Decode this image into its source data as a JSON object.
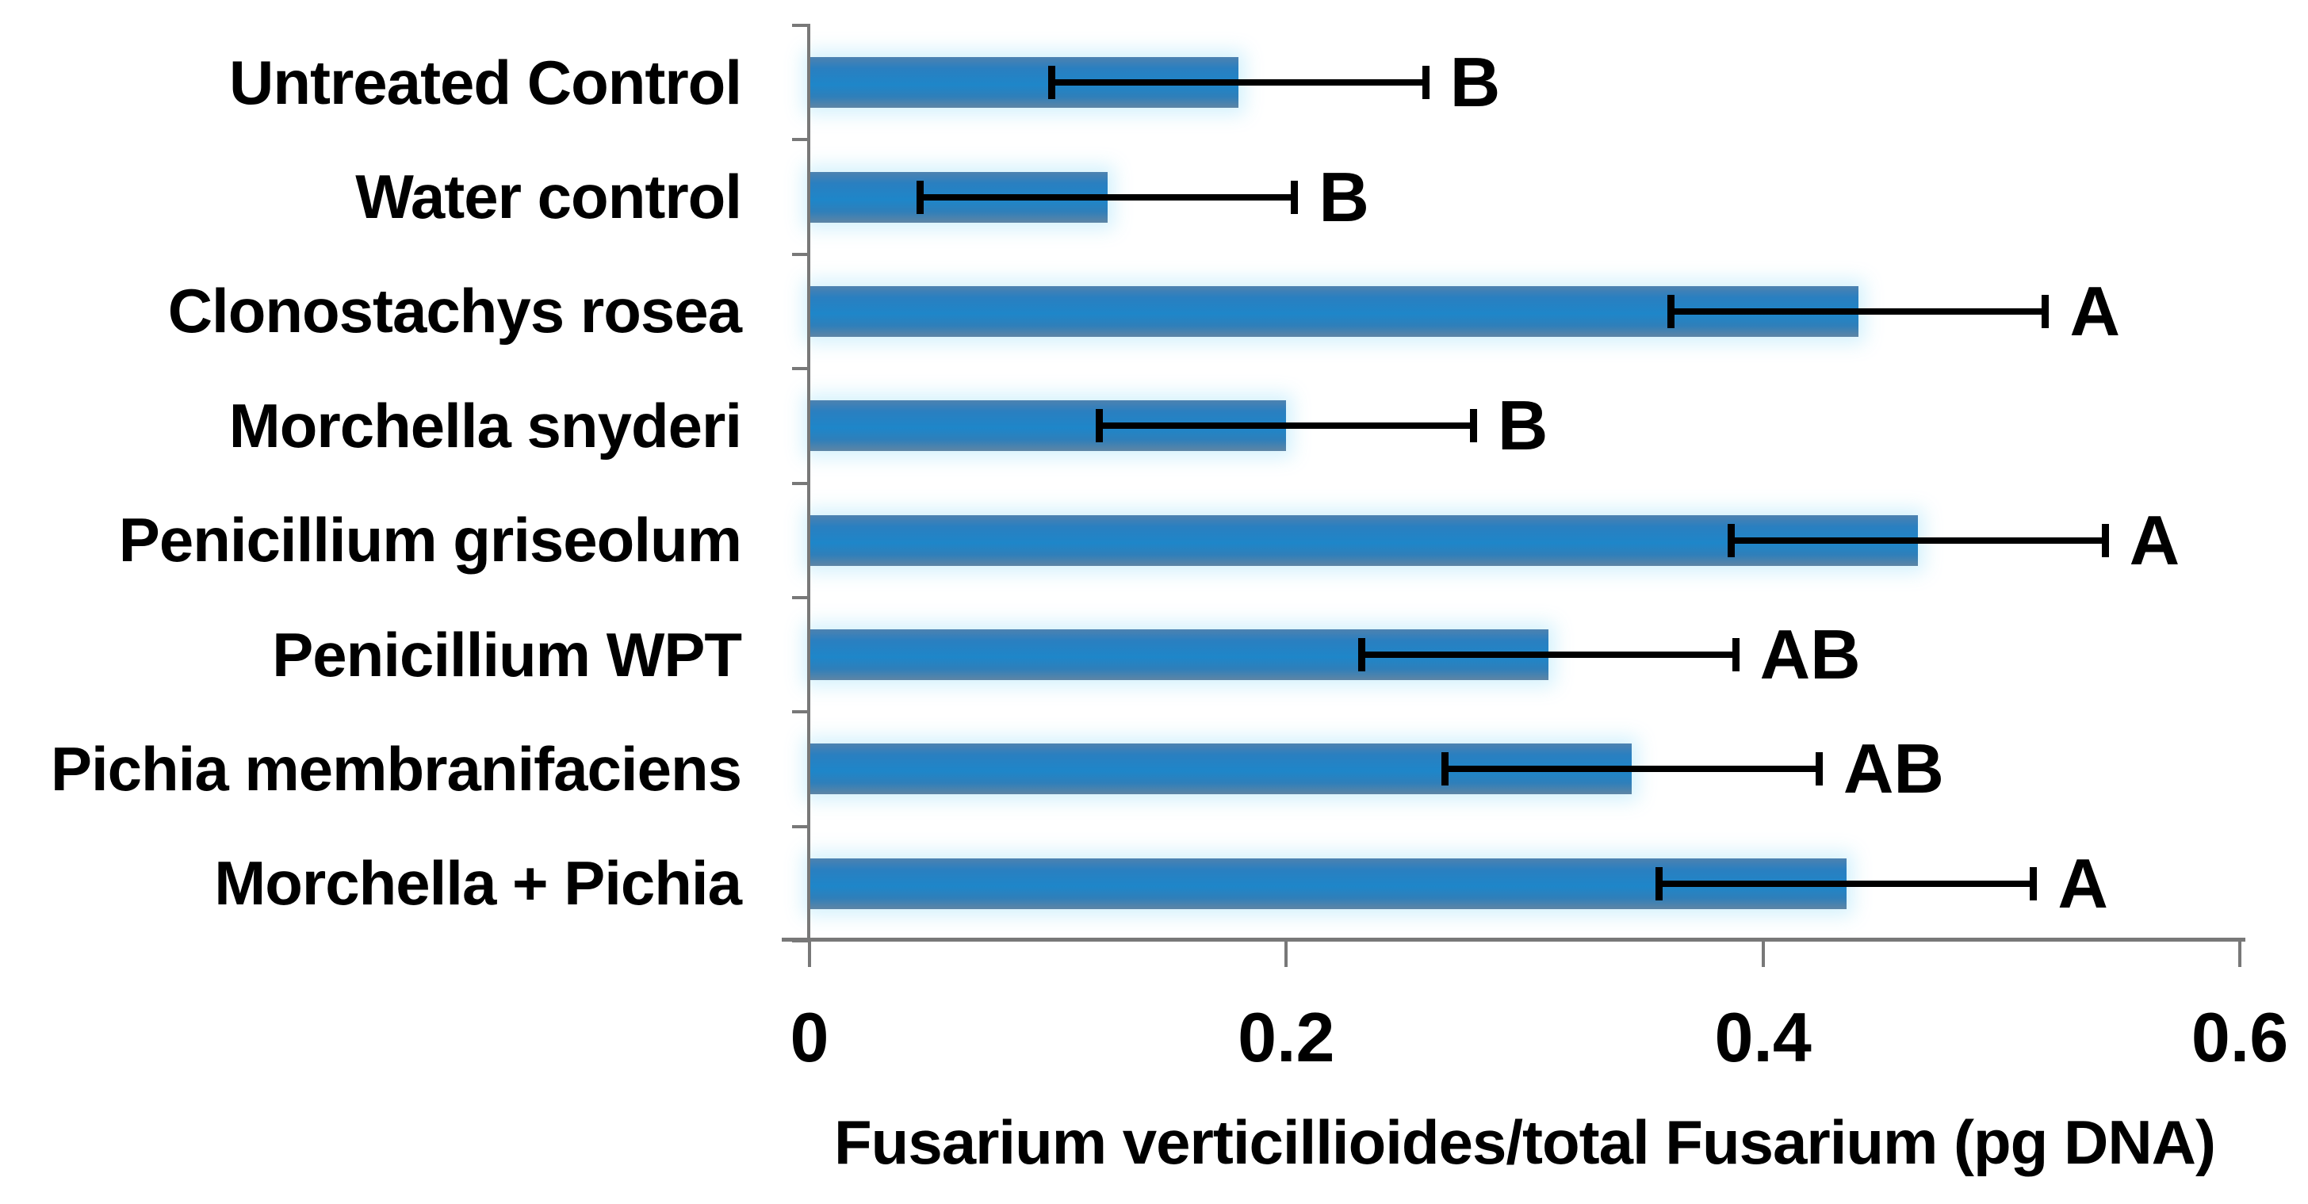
{
  "chart_data": {
    "type": "bar",
    "orientation": "horizontal",
    "title": "",
    "xlabel": "Fusarium verticillioides/total Fusarium (pg DNA)",
    "ylabel": "",
    "xlim": [
      0,
      0.6
    ],
    "grid": false,
    "legend": "none",
    "bar_color": "#1f86c8",
    "error_bar_color": "#000000",
    "axis_line_color": "#787878",
    "x_ticks": [
      {
        "label": "0",
        "value": 0
      },
      {
        "label": "0.2",
        "value": 0.2
      },
      {
        "label": "0.4",
        "value": 0.4
      },
      {
        "label": "0.6",
        "value": 0.6
      }
    ],
    "items": [
      {
        "category": "Untreated Control",
        "value": 0.18,
        "error": 0.08,
        "sig_group": "B"
      },
      {
        "category": "Water control",
        "value": 0.125,
        "error": 0.08,
        "sig_group": "B"
      },
      {
        "category": "Clonostachys rosea",
        "value": 0.44,
        "error": 0.08,
        "sig_group": "A"
      },
      {
        "category": "Morchella snyderi",
        "value": 0.2,
        "error": 0.08,
        "sig_group": "B"
      },
      {
        "category": "Penicillium griseolum",
        "value": 0.465,
        "error": 0.08,
        "sig_group": "A"
      },
      {
        "category": "Penicillium WPT",
        "value": 0.31,
        "error": 0.08,
        "sig_group": "AB"
      },
      {
        "category": "Pichia membranifaciens",
        "value": 0.345,
        "error": 0.08,
        "sig_group": "AB"
      },
      {
        "category": "Morchella + Pichia",
        "value": 0.435,
        "error": 0.08,
        "sig_group": "A"
      }
    ]
  }
}
